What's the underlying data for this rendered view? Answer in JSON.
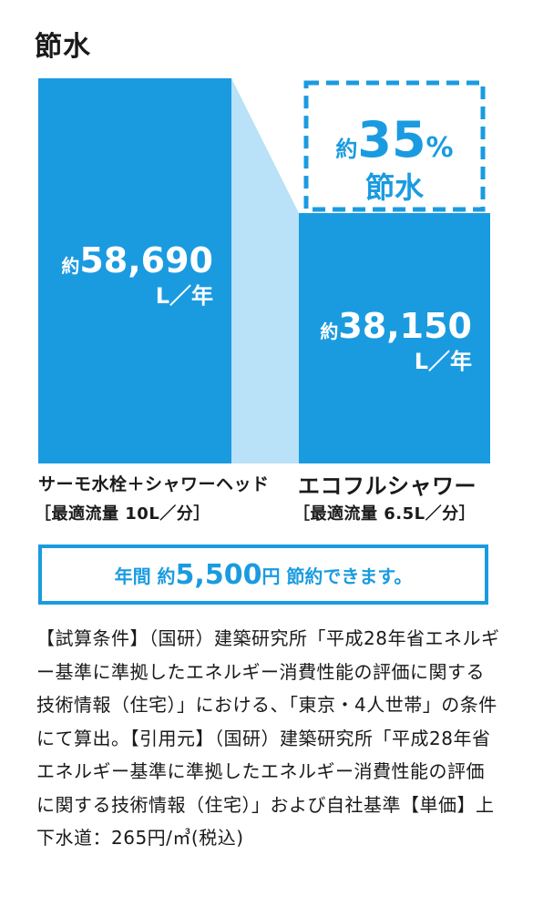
{
  "title": "節水",
  "chart_data": {
    "type": "bar",
    "categories": [
      "サーモ水栓＋シャワーヘッド",
      "エコフルシャワー"
    ],
    "category_subtitles": [
      "［最適流量 10L／分］",
      "［最適流量 6.5L／分］"
    ],
    "values": [
      58690,
      38150
    ],
    "value_prefix": "約",
    "value_labels": [
      "58,690",
      "38,150"
    ],
    "unit": "L／年",
    "colors": {
      "bar": "#1a9be0",
      "connector": "#b9e1f7",
      "text": "#ffffff"
    },
    "annotation": {
      "prefix": "約",
      "number": "35",
      "suffix": "%",
      "text": "節水"
    }
  },
  "saving": {
    "part1": "年間 約",
    "amount": "5,500",
    "part2": "円 節約できます。"
  },
  "note": "【試算条件】（国研）建築研究所「平成28年省エネルギー基準に準拠したエネルギー消費性能の評価に関する技術情報（住宅）」における、「東京・4人世帯」の条件にて算出。【引用元】（国研）建築研究所「平成28年省エネルギー基準に準拠したエネルギー消費性能の評価に関する技術情報（住宅）」および自社基準【単価】上下水道：265円/㎥(税込)"
}
